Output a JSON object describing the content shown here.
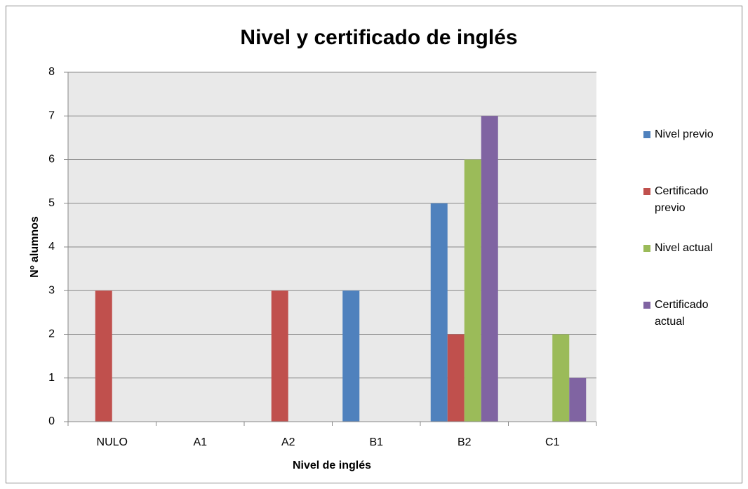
{
  "chart_data": {
    "type": "bar",
    "title": "Nivel y certificado de inglés",
    "x_label": "Nivel de inglés",
    "y_label": "Nº alumnos",
    "categories": [
      "NULO",
      "A1",
      "A2",
      "B1",
      "B2",
      "C1"
    ],
    "series": [
      {
        "name": "Nivel previo",
        "color": "#4f81bd",
        "values": [
          0,
          0,
          0,
          3,
          5,
          0
        ]
      },
      {
        "name": "Certificado previo",
        "color": "#c0504d",
        "values": [
          3,
          0,
          3,
          0,
          2,
          0
        ]
      },
      {
        "name": "Nivel actual",
        "color": "#9bbb59",
        "values": [
          0,
          0,
          0,
          0,
          6,
          2
        ]
      },
      {
        "name": "Certificado actual",
        "color": "#8064a2",
        "values": [
          0,
          0,
          0,
          0,
          7,
          1
        ]
      }
    ],
    "ylim": [
      0,
      8
    ],
    "yticks": [
      0,
      1,
      2,
      3,
      4,
      5,
      6,
      7,
      8
    ],
    "grid": true,
    "legend": "right"
  }
}
